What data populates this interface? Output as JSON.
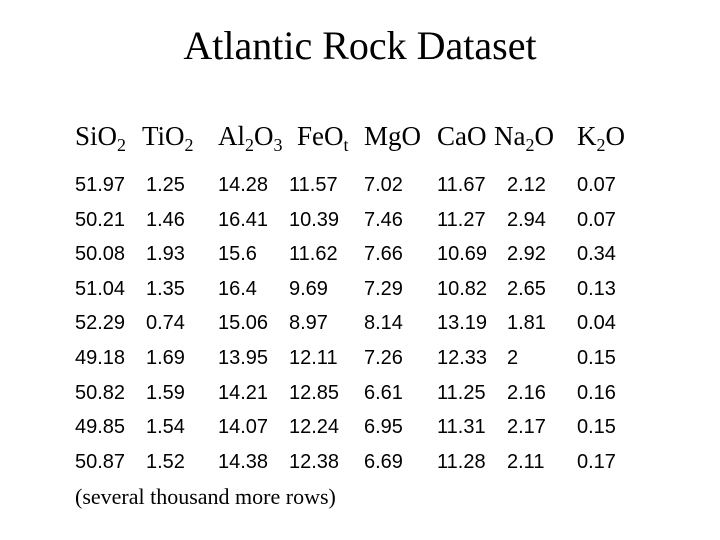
{
  "title": "Atlantic Rock Dataset",
  "columns": [
    {
      "base": "Si",
      "parts": [
        {
          "t": "O",
          "sub": "2"
        }
      ]
    },
    {
      "base": "Ti",
      "parts": [
        {
          "t": "O",
          "sub": "2"
        }
      ]
    },
    {
      "base": "Al",
      "parts": [
        {
          "t": "",
          "sub": "2"
        },
        {
          "t": "O",
          "sub": "3"
        }
      ]
    },
    {
      "base": "Fe",
      "parts": [
        {
          "t": "O",
          "sub": "t"
        }
      ]
    },
    {
      "base": "MgO",
      "parts": []
    },
    {
      "base": "CaO",
      "parts": []
    },
    {
      "base": "Na",
      "parts": [
        {
          "t": "",
          "sub": "2"
        },
        {
          "t": "O",
          "sub": ""
        }
      ]
    },
    {
      "base": "K",
      "parts": [
        {
          "t": "",
          "sub": "2"
        },
        {
          "t": "O",
          "sub": ""
        }
      ]
    }
  ],
  "rows": [
    [
      "51.97",
      "1.25",
      "14.28",
      "11.57",
      "7.02",
      "11.67",
      "2.12",
      "0.07"
    ],
    [
      "50.21",
      "1.46",
      "16.41",
      "10.39",
      "7.46",
      "11.27",
      "2.94",
      "0.07"
    ],
    [
      "50.08",
      "1.93",
      "15.6",
      "11.62",
      "7.66",
      "10.69",
      "2.92",
      "0.34"
    ],
    [
      "51.04",
      "1.35",
      "16.4",
      "9.69",
      "7.29",
      "10.82",
      "2.65",
      "0.13"
    ],
    [
      "52.29",
      "0.74",
      "15.06",
      "8.97",
      "8.14",
      "13.19",
      "1.81",
      "0.04"
    ],
    [
      "49.18",
      "1.69",
      "13.95",
      "12.11",
      "7.26",
      "12.33",
      "2",
      "0.15"
    ],
    [
      "50.82",
      "1.59",
      "14.21",
      "12.85",
      "6.61",
      "11.25",
      "2.16",
      "0.16"
    ],
    [
      "49.85",
      "1.54",
      "14.07",
      "12.24",
      "6.95",
      "11.31",
      "2.17",
      "0.15"
    ],
    [
      "50.87",
      "1.52",
      "14.38",
      "12.38",
      "6.69",
      "11.28",
      "2.11",
      "0.17"
    ]
  ],
  "footer": "(several thousand more rows)"
}
